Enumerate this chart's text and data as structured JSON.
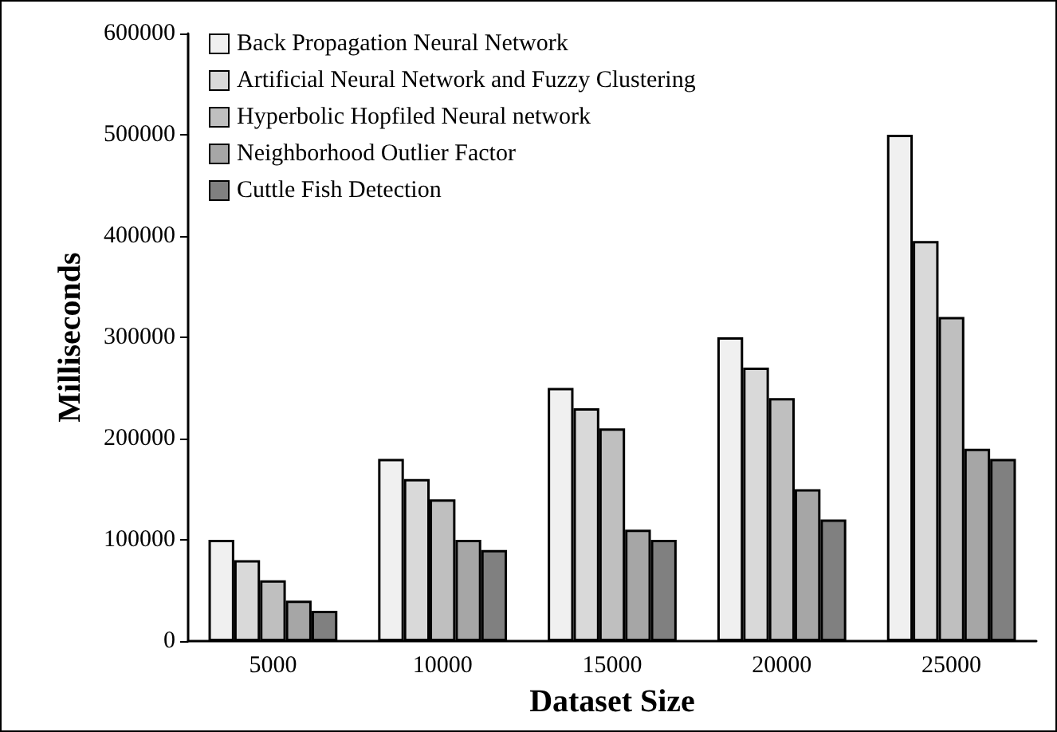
{
  "chart_data": {
    "type": "bar",
    "xlabel": "Dataset Size",
    "ylabel": "Milliseconds",
    "categories": [
      "5000",
      "10000",
      "15000",
      "20000",
      "25000"
    ],
    "series": [
      {
        "name": "Back Propagation Neural Network",
        "color": "#f0f0f0",
        "values": [
          100000,
          180000,
          250000,
          300000,
          500000
        ]
      },
      {
        "name": "Artificial Neural Network and Fuzzy Clustering",
        "color": "#d9d9d9",
        "values": [
          80000,
          160000,
          230000,
          270000,
          395000
        ]
      },
      {
        "name": "Hyperbolic Hopfiled Neural network",
        "color": "#bfbfbf",
        "values": [
          60000,
          140000,
          210000,
          240000,
          320000
        ]
      },
      {
        "name": "Neighborhood Outlier Factor",
        "color": "#a6a6a6",
        "values": [
          40000,
          100000,
          110000,
          150000,
          190000
        ]
      },
      {
        "name": "Cuttle Fish Detection",
        "color": "#808080",
        "values": [
          30000,
          90000,
          100000,
          120000,
          180000
        ]
      }
    ],
    "ylim": [
      0,
      600000
    ],
    "yticks": [
      0,
      100000,
      200000,
      300000,
      400000,
      500000,
      600000
    ],
    "grid": false,
    "legend": "top left"
  }
}
